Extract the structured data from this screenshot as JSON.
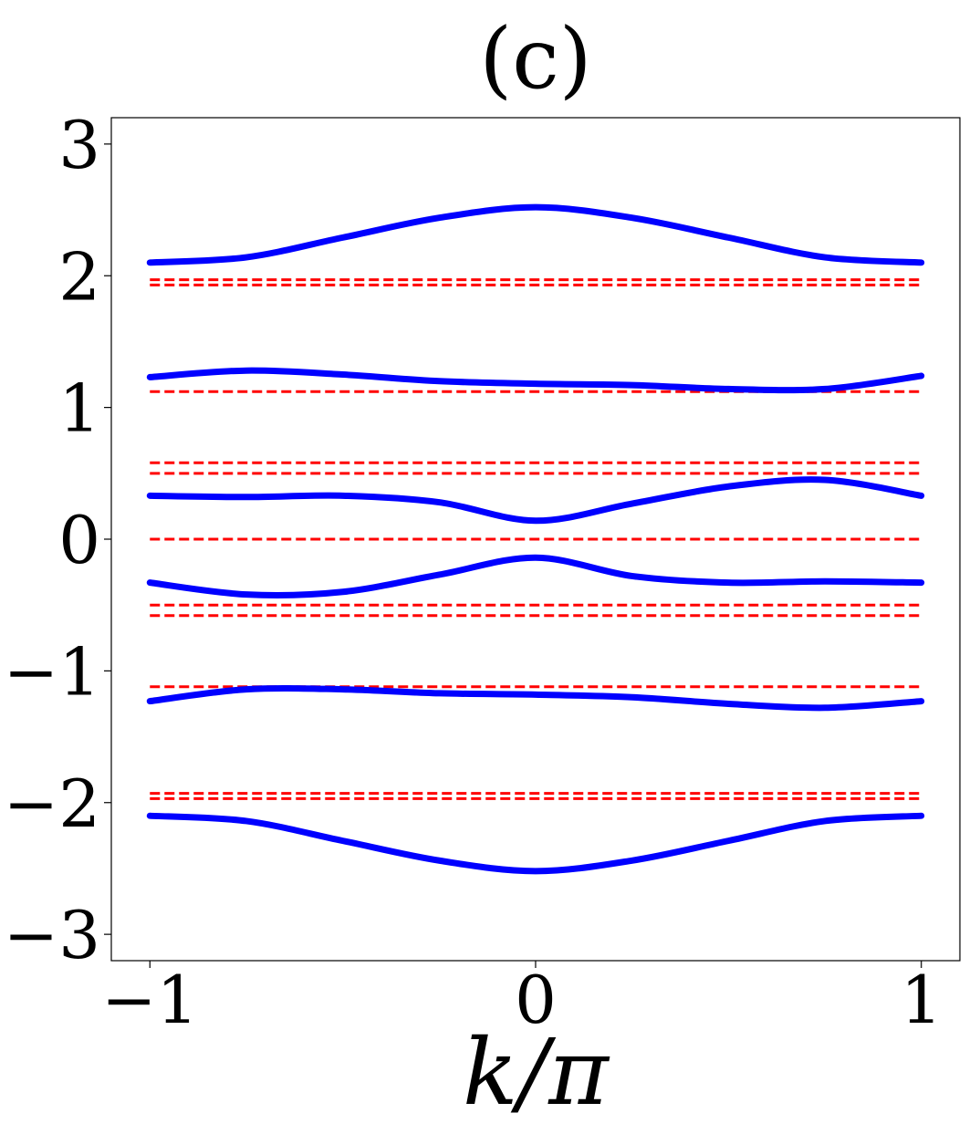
{
  "chart_data": {
    "type": "line",
    "title": "(c)",
    "xlabel": "k/π",
    "ylabel": "",
    "xlim": [
      -1.1,
      1.1
    ],
    "ylim": [
      -3.2,
      3.2
    ],
    "xticks": [
      -1,
      0,
      1
    ],
    "xtick_labels": [
      "−1",
      "0",
      "1"
    ],
    "yticks": [
      -3,
      -2,
      -1,
      0,
      1,
      2,
      3
    ],
    "ytick_labels": [
      "−3",
      "−2",
      "−1",
      "0",
      "1",
      "2",
      "3"
    ],
    "grid": false,
    "x": [
      -1.0,
      -0.75,
      -0.5,
      -0.25,
      0.0,
      0.25,
      0.5,
      0.75,
      1.0
    ],
    "series": [
      {
        "style": "solid",
        "color": "#0000ff",
        "values": [
          2.1,
          2.14,
          2.29,
          2.44,
          2.52,
          2.44,
          2.29,
          2.14,
          2.1
        ]
      },
      {
        "style": "solid",
        "color": "#0000ff",
        "values": [
          1.23,
          1.28,
          1.25,
          1.2,
          1.18,
          1.17,
          1.14,
          1.14,
          1.24
        ]
      },
      {
        "style": "solid",
        "color": "#0000ff",
        "values": [
          0.33,
          0.32,
          0.33,
          0.28,
          0.14,
          0.27,
          0.4,
          0.45,
          0.33
        ]
      },
      {
        "style": "solid",
        "color": "#0000ff",
        "values": [
          -0.33,
          -0.42,
          -0.4,
          -0.27,
          -0.14,
          -0.28,
          -0.33,
          -0.32,
          -0.33
        ]
      },
      {
        "style": "solid",
        "color": "#0000ff",
        "values": [
          -1.23,
          -1.14,
          -1.14,
          -1.17,
          -1.18,
          -1.2,
          -1.25,
          -1.28,
          -1.23
        ]
      },
      {
        "style": "solid",
        "color": "#0000ff",
        "values": [
          -2.1,
          -2.14,
          -2.29,
          -2.44,
          -2.52,
          -2.44,
          -2.29,
          -2.14,
          -2.1
        ]
      }
    ],
    "hlines": {
      "style": "dashed",
      "color": "#ff0000",
      "x_range": [
        -1,
        1
      ],
      "y": [
        1.97,
        1.93,
        1.12,
        0.58,
        0.5,
        0.0,
        -0.5,
        -0.58,
        -1.12,
        -1.93,
        -1.97
      ]
    }
  }
}
